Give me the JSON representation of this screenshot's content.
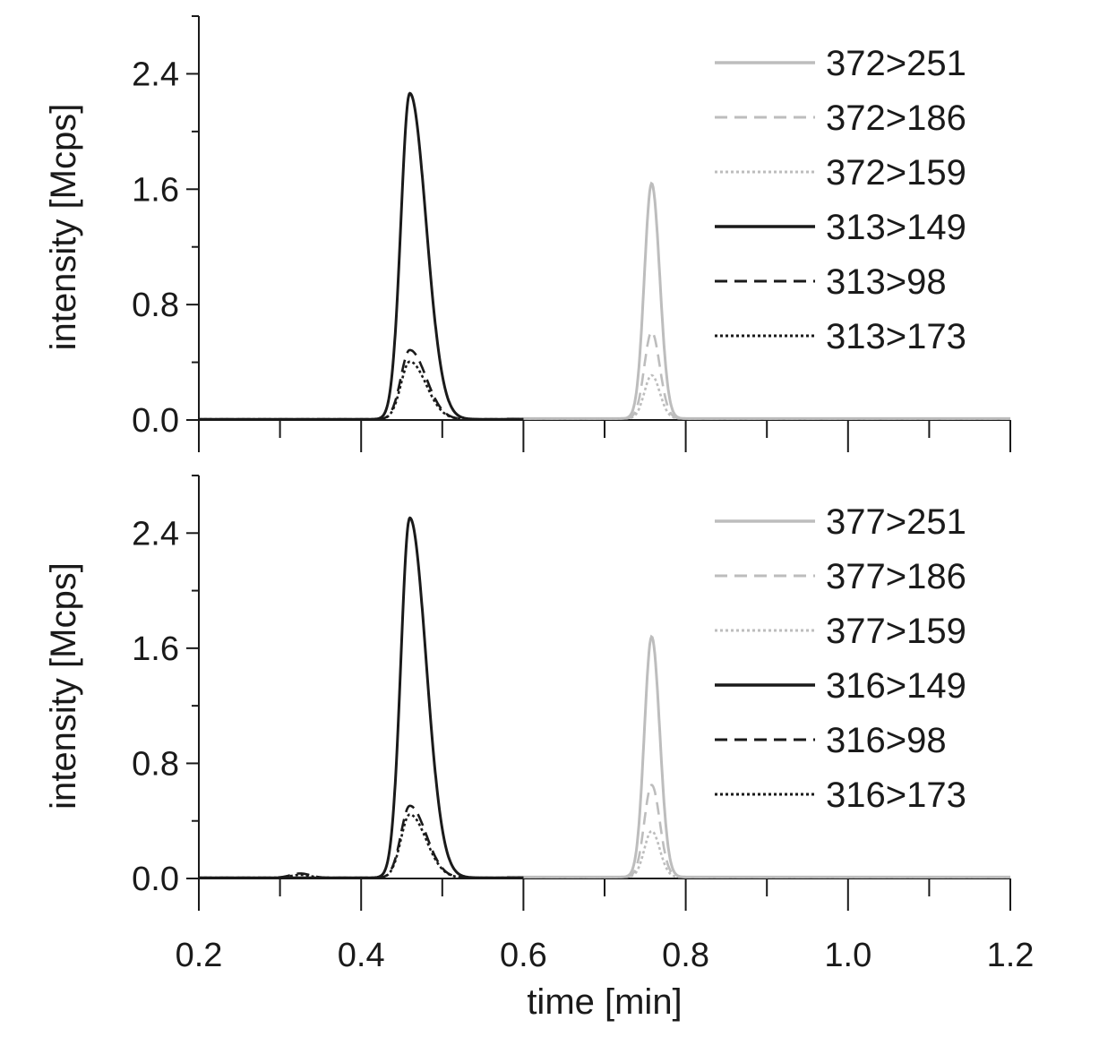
{
  "chart_data": [
    {
      "type": "line",
      "panel": "top",
      "xlabel": "",
      "ylabel": "intensity [Mcps]",
      "xlim": [
        0.2,
        1.2
      ],
      "ylim": [
        0.0,
        2.8
      ],
      "yticks": [
        0.0,
        0.8,
        1.6,
        2.4
      ],
      "ytick_labels": [
        "0.0",
        "0.8",
        "1.6",
        "2.4"
      ],
      "grid": false,
      "legend_position": "top-right",
      "series": [
        {
          "name": "372>251",
          "color": "#bdbdbd",
          "dash": "solid",
          "peak_time": 0.758,
          "peak_height": 1.63,
          "sigma_left": 0.009,
          "sigma_right": 0.01,
          "baseline": 0.01,
          "x_start": 0.58,
          "x_end": 1.2
        },
        {
          "name": "372>186",
          "color": "#bdbdbd",
          "dash": "dashed",
          "peak_time": 0.758,
          "peak_height": 0.6,
          "sigma_left": 0.009,
          "sigma_right": 0.01,
          "baseline": 0.01,
          "x_start": 0.58,
          "x_end": 1.2
        },
        {
          "name": "372>159",
          "color": "#bdbdbd",
          "dash": "dotted",
          "peak_time": 0.758,
          "peak_height": 0.3,
          "sigma_left": 0.009,
          "sigma_right": 0.01,
          "baseline": 0.01,
          "x_start": 0.58,
          "x_end": 1.2
        },
        {
          "name": "313>149",
          "color": "#1a1a1a",
          "dash": "solid",
          "peak_time": 0.46,
          "peak_height": 2.26,
          "sigma_left": 0.011,
          "sigma_right": 0.02,
          "baseline": 0.005,
          "x_start": 0.2,
          "x_end": 0.6
        },
        {
          "name": "313>98",
          "color": "#1a1a1a",
          "dash": "dashed",
          "peak_time": 0.46,
          "peak_height": 0.48,
          "sigma_left": 0.011,
          "sigma_right": 0.02,
          "baseline": 0.005,
          "x_start": 0.2,
          "x_end": 0.6
        },
        {
          "name": "313>173",
          "color": "#1a1a1a",
          "dash": "dotted",
          "peak_time": 0.46,
          "peak_height": 0.4,
          "sigma_left": 0.011,
          "sigma_right": 0.02,
          "baseline": 0.005,
          "x_start": 0.2,
          "x_end": 0.6
        }
      ]
    },
    {
      "type": "line",
      "panel": "bottom",
      "xlabel": "time [min]",
      "ylabel": "intensity [Mcps]",
      "xlim": [
        0.2,
        1.2
      ],
      "ylim": [
        0.0,
        2.8
      ],
      "xticks": [
        0.2,
        0.4,
        0.6,
        0.8,
        1.0,
        1.2
      ],
      "xtick_labels": [
        "0.2",
        "0.4",
        "0.6",
        "0.8",
        "1.0",
        "1.2"
      ],
      "yticks": [
        0.0,
        0.8,
        1.6,
        2.4
      ],
      "ytick_labels": [
        "0.0",
        "0.8",
        "1.6",
        "2.4"
      ],
      "grid": false,
      "legend_position": "top-right",
      "series": [
        {
          "name": "377>251",
          "color": "#bdbdbd",
          "dash": "solid",
          "peak_time": 0.758,
          "peak_height": 1.67,
          "sigma_left": 0.009,
          "sigma_right": 0.01,
          "baseline": 0.01,
          "x_start": 0.58,
          "x_end": 1.2
        },
        {
          "name": "377>186",
          "color": "#bdbdbd",
          "dash": "dashed",
          "peak_time": 0.758,
          "peak_height": 0.64,
          "sigma_left": 0.009,
          "sigma_right": 0.01,
          "baseline": 0.01,
          "x_start": 0.58,
          "x_end": 1.2
        },
        {
          "name": "377>159",
          "color": "#bdbdbd",
          "dash": "dotted",
          "peak_time": 0.758,
          "peak_height": 0.32,
          "sigma_left": 0.009,
          "sigma_right": 0.01,
          "baseline": 0.01,
          "x_start": 0.58,
          "x_end": 1.2
        },
        {
          "name": "316>149",
          "color": "#1a1a1a",
          "dash": "solid",
          "peak_time": 0.46,
          "peak_height": 2.5,
          "sigma_left": 0.011,
          "sigma_right": 0.02,
          "baseline": 0.005,
          "x_start": 0.2,
          "x_end": 0.6
        },
        {
          "name": "316>98",
          "color": "#1a1a1a",
          "dash": "dashed",
          "peak_time": 0.46,
          "peak_height": 0.5,
          "sigma_left": 0.011,
          "sigma_right": 0.02,
          "baseline": 0.005,
          "x_start": 0.2,
          "x_end": 0.6,
          "minor_peak_time": 0.325,
          "minor_peak_height": 0.03
        },
        {
          "name": "316>173",
          "color": "#1a1a1a",
          "dash": "dotted",
          "peak_time": 0.46,
          "peak_height": 0.44,
          "sigma_left": 0.011,
          "sigma_right": 0.02,
          "baseline": 0.005,
          "x_start": 0.2,
          "x_end": 0.6,
          "minor_peak_time": 0.325,
          "minor_peak_height": 0.02
        }
      ]
    }
  ]
}
